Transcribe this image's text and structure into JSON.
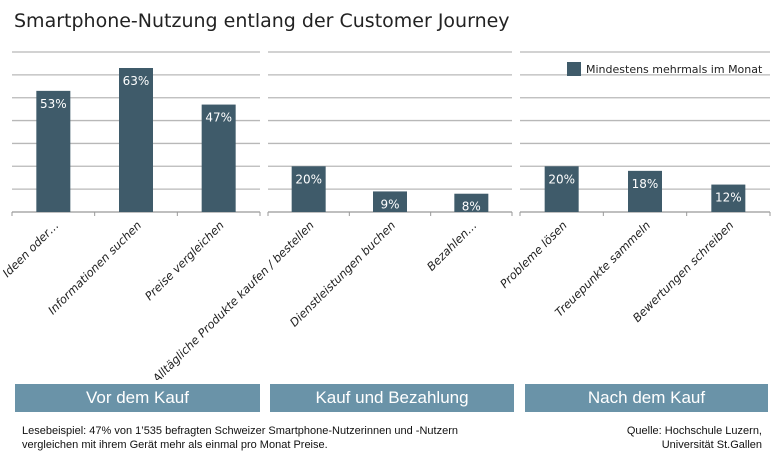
{
  "chart_data": {
    "type": "bar",
    "title": "Smartphone-Nutzung entlang der Customer Journey",
    "categories": [
      "Ideen oder…",
      "Informationen suchen",
      "Preise vergleichen",
      "Alltägliche Produkte kaufen / bestellen",
      "Dienstleistungen buchen",
      "Bezahlen…",
      "Probleme lösen",
      "Treuepunkte sammeln",
      "Bewertungen schreiben"
    ],
    "series": [
      {
        "name": "Mindestens mehrmals im Monat",
        "values": [
          53,
          63,
          47,
          20,
          9,
          8,
          20,
          18,
          12
        ]
      }
    ],
    "data_labels": [
      "53%",
      "63%",
      "47%",
      "20%",
      "9%",
      "8%",
      "20%",
      "18%",
      "12%"
    ],
    "groups": [
      "Vor dem Kauf",
      "Kauf und Bezahlung",
      "Nach dem Kauf"
    ],
    "ylim": [
      0,
      70
    ],
    "grid": true,
    "legend": "top-right",
    "colors": {
      "bar": "#3f5b6a",
      "band": "#6a93a8",
      "grid": "#b8b8b8"
    }
  },
  "footer": {
    "note_line1": "Lesebeispiel: 47% von 1’535 befragten Schweizer Smartphone-Nutzerinnen und -Nutzern",
    "note_line2": "vergleichen mit ihrem Gerät mehr als einmal pro Monat Preise.",
    "source_line1": "Quelle: Hochschule Luzern,",
    "source_line2": "Universität St.Gallen"
  }
}
